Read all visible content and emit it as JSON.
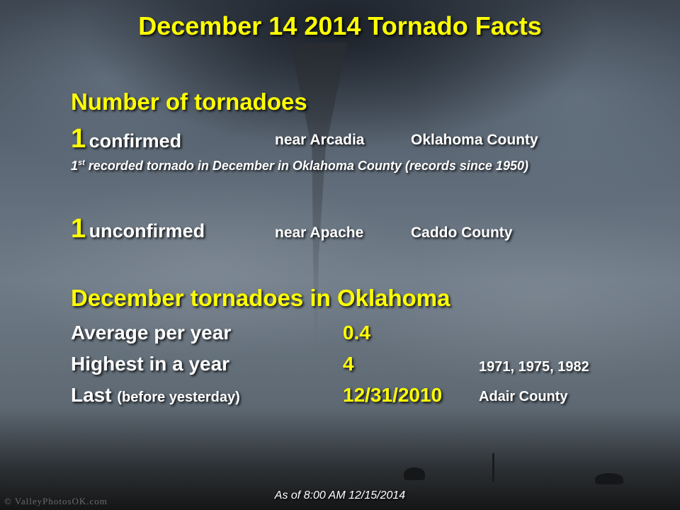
{
  "slide": {
    "title": "December 14 2014 Tornado Facts",
    "section_number": {
      "heading": "Number of tornadoes",
      "confirmed": {
        "count": "1",
        "label": "confirmed",
        "location": "near Arcadia",
        "county": "Oklahoma County"
      },
      "note": {
        "ordinal_num": "1",
        "ordinal_sup": "st",
        "text": " recorded tornado in December in Oklahoma County (records since 1950)"
      },
      "unconfirmed": {
        "count": "1",
        "label": "unconfirmed",
        "location": "near Apache",
        "county": "Caddo County"
      }
    },
    "section_december": {
      "heading": "December tornadoes in Oklahoma",
      "average": {
        "label": "Average per year",
        "value": "0.4"
      },
      "highest": {
        "label": "Highest in a year",
        "value": "4",
        "years": "1971, 1975, 1982"
      },
      "last": {
        "label": "Last",
        "paren": "(before yesterday)",
        "value": "12/31/2010",
        "county": "Adair County"
      }
    },
    "footer": "As of 8:00 AM 12/15/2014",
    "credit": "© ValleyPhotosOK.com"
  },
  "colors": {
    "accent": "#ffff00",
    "text": "#ffffff"
  }
}
